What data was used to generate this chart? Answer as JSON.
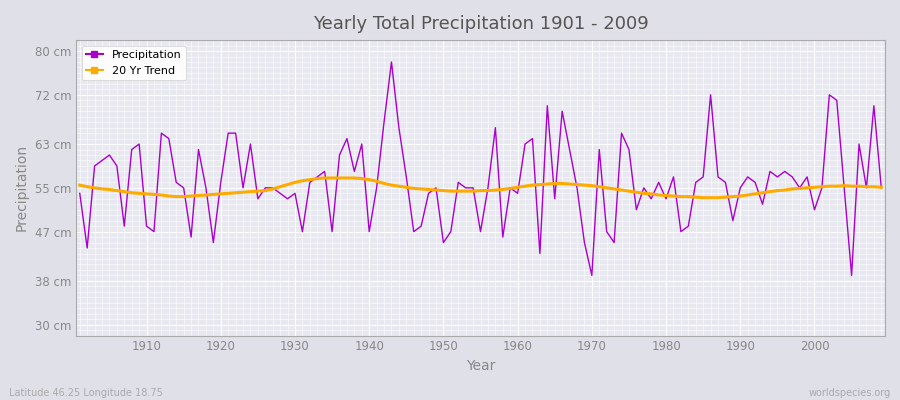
{
  "title": "Yearly Total Precipitation 1901 - 2009",
  "xlabel": "Year",
  "ylabel": "Precipitation",
  "subtitle_lat": "Latitude 46.25 Longitude 18.75",
  "watermark": "worldspecies.org",
  "fig_bg_color": "#e0e0e8",
  "plot_bg_color": "#e8e8f0",
  "grid_color": "#ffffff",
  "precip_color": "#aa00cc",
  "trend_color": "#ffaa00",
  "ylim": [
    28,
    82
  ],
  "yticks": [
    30,
    38,
    47,
    55,
    63,
    72,
    80
  ],
  "ytick_labels": [
    "30 cm",
    "38 cm",
    "47 cm",
    "55 cm",
    "63 cm",
    "72 cm",
    "80 cm"
  ],
  "xticks": [
    1910,
    1920,
    1930,
    1940,
    1950,
    1960,
    1970,
    1980,
    1990,
    2000
  ],
  "years": [
    1901,
    1902,
    1903,
    1904,
    1905,
    1906,
    1907,
    1908,
    1909,
    1910,
    1911,
    1912,
    1913,
    1914,
    1915,
    1916,
    1917,
    1918,
    1919,
    1920,
    1921,
    1922,
    1923,
    1924,
    1925,
    1926,
    1927,
    1928,
    1929,
    1930,
    1931,
    1932,
    1933,
    1934,
    1935,
    1936,
    1937,
    1938,
    1939,
    1940,
    1941,
    1942,
    1943,
    1944,
    1945,
    1946,
    1947,
    1948,
    1949,
    1950,
    1951,
    1952,
    1953,
    1954,
    1955,
    1956,
    1957,
    1958,
    1959,
    1960,
    1961,
    1962,
    1963,
    1964,
    1965,
    1966,
    1967,
    1968,
    1969,
    1970,
    1971,
    1972,
    1973,
    1974,
    1975,
    1976,
    1977,
    1978,
    1979,
    1980,
    1981,
    1982,
    1983,
    1984,
    1985,
    1986,
    1987,
    1988,
    1989,
    1990,
    1991,
    1992,
    1993,
    1994,
    1995,
    1996,
    1997,
    1998,
    1999,
    2000,
    2001,
    2002,
    2003,
    2004,
    2005,
    2006,
    2007,
    2008,
    2009
  ],
  "precip": [
    54,
    44,
    59,
    60,
    61,
    59,
    48,
    62,
    63,
    48,
    47,
    65,
    64,
    56,
    55,
    46,
    62,
    55,
    45,
    56,
    65,
    65,
    55,
    63,
    53,
    55,
    55,
    54,
    53,
    54,
    47,
    56,
    57,
    58,
    47,
    61,
    64,
    58,
    63,
    47,
    55,
    67,
    78,
    66,
    57,
    47,
    48,
    54,
    55,
    45,
    47,
    56,
    55,
    55,
    47,
    55,
    66,
    46,
    55,
    54,
    63,
    64,
    43,
    70,
    53,
    69,
    62,
    55,
    45,
    39,
    62,
    47,
    45,
    65,
    62,
    51,
    55,
    53,
    56,
    53,
    57,
    47,
    48,
    56,
    57,
    72,
    57,
    56,
    49,
    55,
    57,
    56,
    52,
    58,
    57,
    58,
    57,
    55,
    57,
    51,
    55,
    72,
    71,
    55,
    39,
    63,
    55,
    70,
    55
  ],
  "trend": [
    55.5,
    55.2,
    55.0,
    54.8,
    54.7,
    54.5,
    54.3,
    54.1,
    54.0,
    53.9,
    53.8,
    53.7,
    53.5,
    53.4,
    53.4,
    53.5,
    53.6,
    53.7,
    53.8,
    53.9,
    54.0,
    54.1,
    54.2,
    54.3,
    54.4,
    54.5,
    54.8,
    55.2,
    55.6,
    56.0,
    56.3,
    56.5,
    56.7,
    56.8,
    56.8,
    56.8,
    56.8,
    56.8,
    56.7,
    56.5,
    56.2,
    55.8,
    55.5,
    55.3,
    55.1,
    54.9,
    54.8,
    54.7,
    54.6,
    54.5,
    54.4,
    54.4,
    54.4,
    54.4,
    54.5,
    54.5,
    54.6,
    54.7,
    54.9,
    55.1,
    55.3,
    55.5,
    55.6,
    55.7,
    55.8,
    55.8,
    55.7,
    55.6,
    55.5,
    55.4,
    55.2,
    55.0,
    54.8,
    54.6,
    54.4,
    54.2,
    54.0,
    53.9,
    53.7,
    53.6,
    53.5,
    53.4,
    53.4,
    53.3,
    53.2,
    53.2,
    53.2,
    53.3,
    53.4,
    53.5,
    53.7,
    53.9,
    54.1,
    54.3,
    54.5,
    54.6,
    54.8,
    54.9,
    55.0,
    55.1,
    55.2,
    55.3,
    55.3,
    55.4,
    55.3,
    55.3,
    55.2,
    55.2,
    55.1
  ]
}
